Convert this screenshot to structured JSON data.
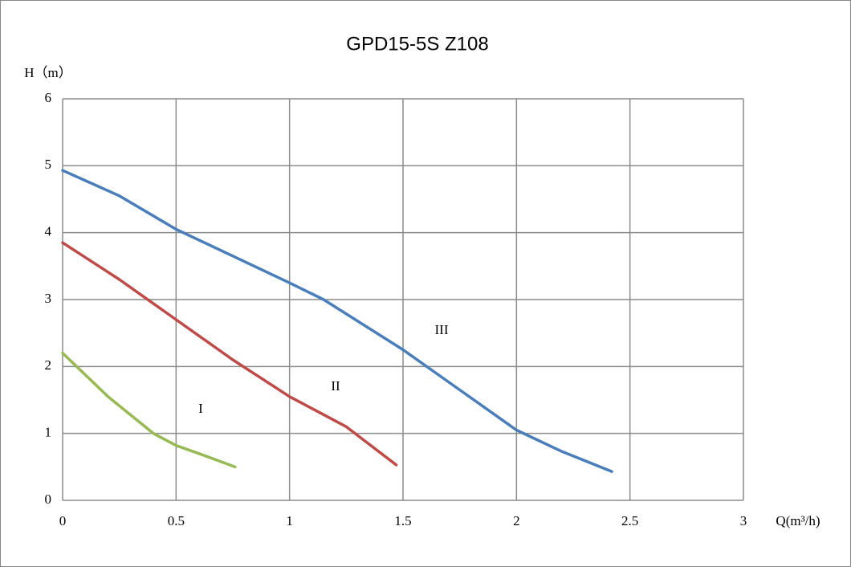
{
  "chart_data": {
    "type": "line",
    "title": "GPD15-5S  Z108",
    "y_label": "H（m）",
    "x_label": "Q(m³/h)",
    "xlim": [
      0,
      3
    ],
    "xticks": [
      0,
      0.5,
      1,
      1.5,
      2,
      2.5,
      3
    ],
    "ylim": [
      0,
      6
    ],
    "yticks": [
      0,
      1,
      2,
      3,
      4,
      5,
      6
    ],
    "grid": true,
    "series": [
      {
        "name": "I",
        "color": "#98b954",
        "x": [
          0,
          0.2,
          0.4,
          0.5,
          0.6,
          0.76
        ],
        "values": [
          2.2,
          1.55,
          1.0,
          0.82,
          0.7,
          0.5
        ]
      },
      {
        "name": "II",
        "color": "#be4b48",
        "x": [
          0,
          0.25,
          0.5,
          0.75,
          1,
          1.25,
          1.47
        ],
        "values": [
          3.85,
          3.3,
          2.7,
          2.1,
          1.55,
          1.1,
          0.53
        ]
      },
      {
        "name": "III",
        "color": "#4a7ebb",
        "x": [
          0,
          0.25,
          0.5,
          0.75,
          1,
          1.15,
          1.5,
          1.75,
          2,
          2.2,
          2.42
        ],
        "values": [
          4.93,
          4.55,
          4.05,
          3.65,
          3.25,
          3.0,
          2.25,
          1.65,
          1.05,
          0.73,
          0.43
        ]
      }
    ]
  }
}
